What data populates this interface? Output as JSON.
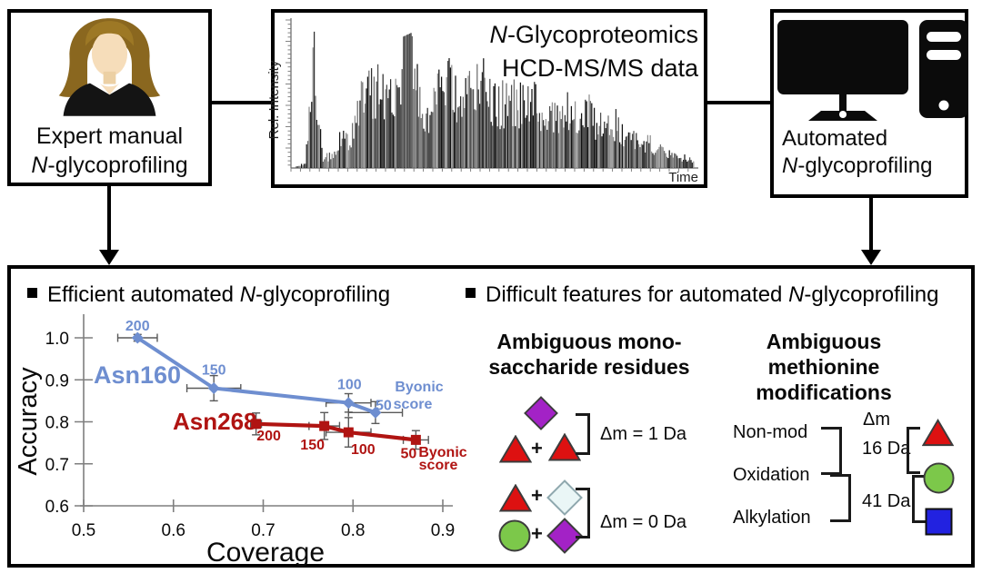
{
  "boxes": {
    "expert": {
      "line1": "Expert manual",
      "line2_italic": "N",
      "line2_rest": "-glycoprofiling"
    },
    "automated": {
      "line1": "Automated",
      "line2_italic": "N",
      "line2_rest": "-glycoprofiling"
    }
  },
  "chromatogram": {
    "title_line1_italic": "N",
    "title_line1_rest": "-Glycoproteomics",
    "title_line2": "HCD-MS/MS data",
    "ylabel": "Rel. Intensity",
    "xlabel": "Time"
  },
  "headers": {
    "left_bullet": "■",
    "left_pre": "Efficient automated ",
    "left_italic": "N",
    "left_post": "-glycoprofiling",
    "right_bullet": "■",
    "right_pre": "Difficult features for automated ",
    "right_italic": "N",
    "right_post": "-glycoprofiling"
  },
  "monosaccharide": {
    "heading1": "Ambiguous mono-",
    "heading2": "saccharide residues",
    "plus": "+",
    "group1_delta": "Δm = 1 Da",
    "group2_delta": "Δm = 0 Da",
    "group1_shapes": [
      "purple-diamond",
      "red-triangle",
      "red-triangle"
    ],
    "group2_row1_shapes": [
      "red-triangle",
      "white-diamond"
    ],
    "group2_row2_shapes": [
      "green-circle",
      "purple-diamond"
    ]
  },
  "methionine": {
    "heading1": "Ambiguous methionine",
    "heading2": "modifications",
    "delta_heading": "Δm",
    "rows": [
      "Non-mod",
      "Oxidation",
      "Alkylation"
    ],
    "delta1": "16 Da",
    "delta2": "41 Da",
    "shapes": [
      "red-triangle",
      "green-circle",
      "blue-square"
    ]
  },
  "colors": {
    "asn160_blue": "#6e8ed0",
    "asn268_red": "#b01412",
    "red_triangle": "#dd1111",
    "purple_diamond": "#a322c6",
    "white_diamond": "#eaf6f6",
    "green_circle": "#7cc84a",
    "blue_square": "#2222e0"
  },
  "chart_data": [
    {
      "type": "area",
      "title": "N-Glycoproteomics HCD-MS/MS data",
      "xlabel": "Time",
      "ylabel": "Rel. Intensity",
      "envelope": [
        0.02,
        0.04,
        1.0,
        0.1,
        0.12,
        0.3,
        0.25,
        0.55,
        0.8,
        0.85,
        0.7,
        0.62,
        0.95,
        0.98,
        0.7,
        0.55,
        0.75,
        0.88,
        0.8,
        0.65,
        0.75,
        0.85,
        0.68,
        0.6,
        0.72,
        0.65,
        0.58,
        0.68,
        0.55,
        0.48,
        0.6,
        0.52,
        0.45,
        0.55,
        0.42,
        0.38,
        0.45,
        0.32,
        0.28,
        0.22,
        0.25,
        0.18,
        0.15,
        0.12,
        0.1,
        0.07
      ]
    },
    {
      "type": "line",
      "xlabel": "Coverage",
      "ylabel": "Accuracy",
      "xlim": [
        0.5,
        0.9
      ],
      "ylim": [
        0.6,
        1.0
      ],
      "xticks": [
        0.5,
        0.6,
        0.7,
        0.8,
        0.9
      ],
      "yticks": [
        0.6,
        0.7,
        0.8,
        0.9,
        1.0
      ],
      "legend_position": "inline",
      "grid": false,
      "series": [
        {
          "name": "Asn160",
          "color": "#6e8ed0",
          "marker": "diamond",
          "annotation": "Byonic score",
          "points": [
            {
              "x": 0.56,
              "y": 1.0,
              "xerr": 0.022,
              "yerr": 0.008,
              "label": "200"
            },
            {
              "x": 0.645,
              "y": 0.88,
              "xerr": 0.03,
              "yerr": 0.03,
              "label": "150"
            },
            {
              "x": 0.795,
              "y": 0.845,
              "xerr": 0.025,
              "yerr": 0.022,
              "label": "100"
            },
            {
              "x": 0.825,
              "y": 0.822,
              "xerr": 0.03,
              "yerr": 0.026,
              "label": "50"
            }
          ]
        },
        {
          "name": "Asn268",
          "color": "#b01412",
          "marker": "square",
          "annotation": "Byonic score",
          "points": [
            {
              "x": 0.692,
              "y": 0.795,
              "xerr": 0.006,
              "yerr": 0.026,
              "label": "200"
            },
            {
              "x": 0.768,
              "y": 0.79,
              "xerr": 0.017,
              "yerr": 0.032,
              "label": "150"
            },
            {
              "x": 0.795,
              "y": 0.775,
              "xerr": 0.025,
              "yerr": 0.035,
              "label": "100"
            },
            {
              "x": 0.87,
              "y": 0.757,
              "xerr": 0.014,
              "yerr": 0.022,
              "label": "50"
            }
          ]
        }
      ]
    }
  ]
}
